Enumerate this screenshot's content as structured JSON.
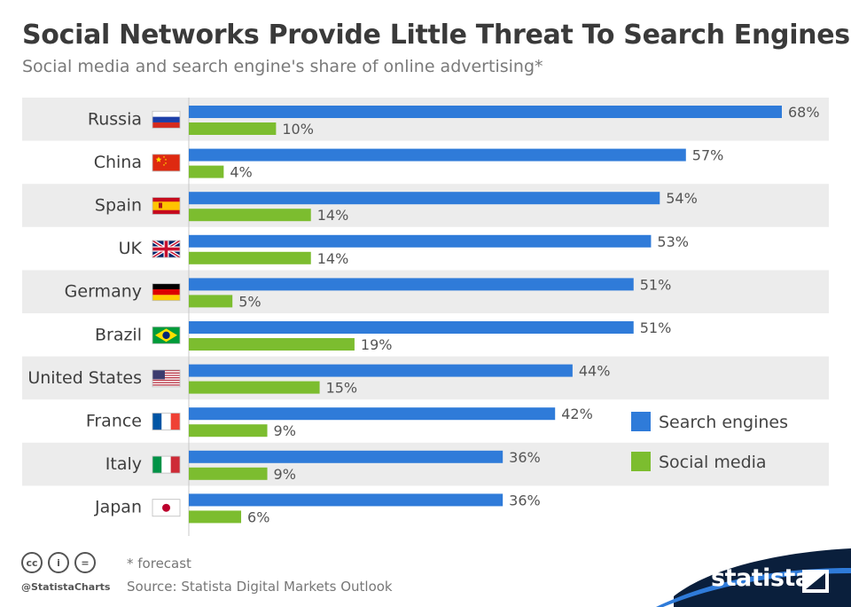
{
  "header": {
    "title": "Social Networks Provide Little Threat To Search Engines",
    "subtitle": "Social media and search engine's share of online advertising*"
  },
  "chart_data": {
    "type": "bar",
    "orientation": "horizontal",
    "categories": [
      "Russia",
      "China",
      "Spain",
      "UK",
      "Germany",
      "Brazil",
      "United States",
      "France",
      "Italy",
      "Japan"
    ],
    "series": [
      {
        "name": "Search engines",
        "color": "#2f7bd9",
        "values": [
          68,
          57,
          54,
          53,
          51,
          51,
          44,
          42,
          36,
          36
        ]
      },
      {
        "name": "Social media",
        "color": "#7cbd2f",
        "values": [
          10,
          4,
          14,
          14,
          5,
          19,
          15,
          9,
          9,
          6
        ]
      }
    ],
    "value_suffix": "%",
    "xlim": [
      0,
      68
    ],
    "grid": false,
    "legend_position": "bottom-right",
    "flag_icons": [
      "russia-flag-icon",
      "china-flag-icon",
      "spain-flag-icon",
      "uk-flag-icon",
      "germany-flag-icon",
      "brazil-flag-icon",
      "united-states-flag-icon",
      "france-flag-icon",
      "italy-flag-icon",
      "japan-flag-icon"
    ]
  },
  "footer": {
    "note": "* forecast",
    "source": "Source: Statista Digital Markets Outlook",
    "handle": "@StatistaCharts",
    "brand": "statista",
    "license_icons": [
      "cc-icon",
      "by-icon",
      "nd-icon"
    ],
    "license_glyphs": [
      "cc",
      "i",
      "="
    ]
  }
}
